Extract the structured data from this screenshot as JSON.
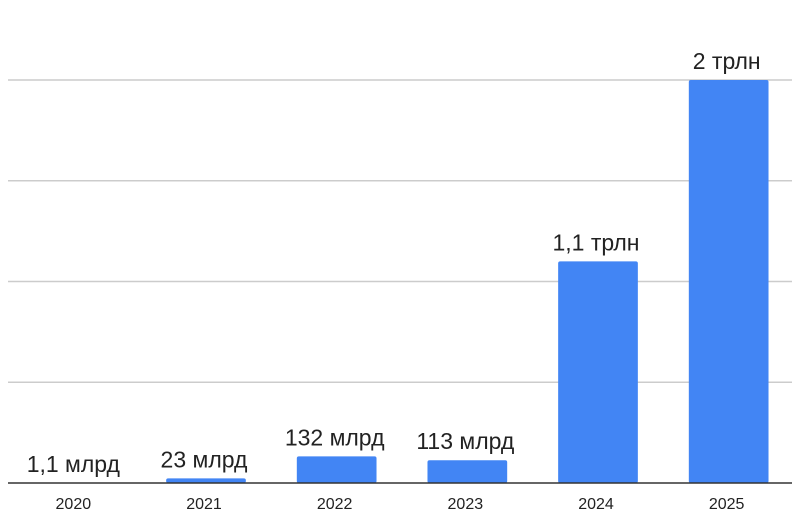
{
  "chart_data": {
    "type": "bar",
    "title": "",
    "xlabel": "",
    "ylabel": "",
    "categories": [
      "2020",
      "2021",
      "2022",
      "2023",
      "2024",
      "2025"
    ],
    "values": [
      0.0011,
      0.023,
      0.132,
      0.113,
      1.1,
      2.0
    ],
    "data_labels": [
      "1,1 млрд",
      "23 млрд",
      "132 млрд",
      "113 млрд",
      "1,1 трлн",
      "2 трлн"
    ],
    "value_unit": "трлн",
    "ylim": [
      0,
      2
    ],
    "y_gridlines": 4,
    "grid": true,
    "legend": "none",
    "bar_color": "#4285f4",
    "grid_color": "#cccccc",
    "axis_color": "#333333"
  }
}
